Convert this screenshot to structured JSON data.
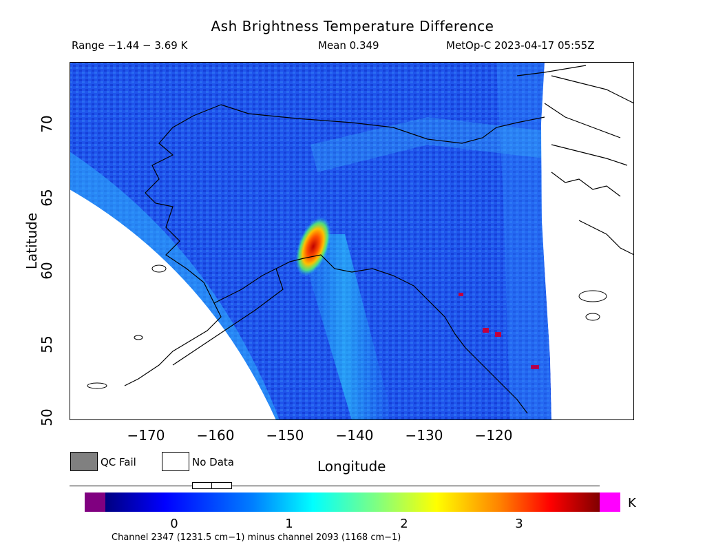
{
  "header": {
    "title": "Ash Brightness Temperature Difference",
    "range": "Range −1.44 − 3.69 K",
    "mean": "Mean 0.349",
    "satellite": "MetOp-C 2023-04-17 05:55Z"
  },
  "map": {
    "x_axis": {
      "label": "Longitude",
      "ticks": [
        "−170",
        "−160",
        "−150",
        "−140",
        "−130",
        "−120"
      ],
      "range": [
        -177,
        -112
      ]
    },
    "y_axis": {
      "label": "Latitude",
      "ticks": [
        "50",
        "55",
        "60",
        "65",
        "70"
      ],
      "range": [
        50,
        74.5
      ]
    },
    "colors": {
      "background_field": "#1a4fe8",
      "hotspot": "#e02000",
      "no_data": "#ffffff",
      "coastline": "#000000"
    },
    "ash_plume": {
      "lon": -148,
      "lat": 62,
      "max_k": 3.69
    }
  },
  "legend": {
    "qc_fail_label": "QC Fail",
    "qc_fail_color": "#808080",
    "no_data_label": "No Data",
    "no_data_color": "#ffffff"
  },
  "colorbar": {
    "ticks": [
      "0",
      "1",
      "2",
      "3"
    ],
    "unit": "K",
    "range": [
      -0.6,
      3.7
    ],
    "underflow_color": "#800080",
    "overflow_color": "#ff00ff",
    "scale_colors": [
      "#000080",
      "#0000ff",
      "#0080ff",
      "#00ffff",
      "#80ff80",
      "#ffff00",
      "#ff8000",
      "#ff0000",
      "#800000"
    ]
  },
  "caption": "Channel 2347 (1231.5 cm−1) minus channel 2093 (1168 cm−1)"
}
